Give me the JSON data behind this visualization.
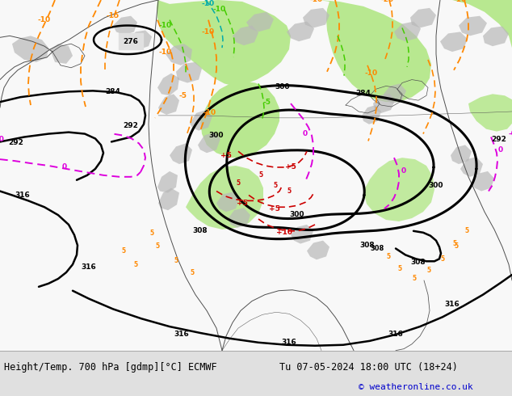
{
  "title_left": "Height/Temp. 700 hPa [gdmp][°C] ECMWF",
  "title_right": "Tu 07-05-2024 18:00 UTC (18+24)",
  "copyright": "© weatheronline.co.uk",
  "bg_map": "#e0e0e0",
  "green_fill": "#b8e890",
  "gray_land": "#c8c8c8",
  "bottom_bar_color": "#f0f0f0",
  "title_font_size": 8.5,
  "copyright_color": "#0000cc",
  "figsize": [
    6.34,
    4.9
  ],
  "dpi": 100,
  "map_white": "#ffffff",
  "orange": "#ff8800",
  "magenta": "#dd00dd",
  "red": "#cc0000",
  "lime": "#44cc00",
  "cyan_teal": "#00bbbb",
  "black": "#000000"
}
